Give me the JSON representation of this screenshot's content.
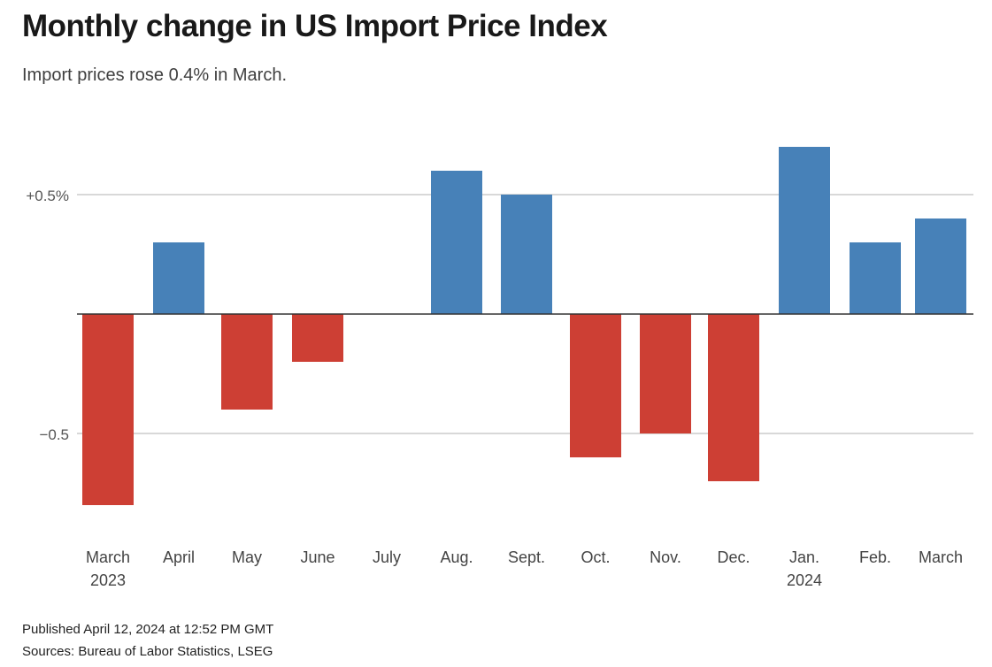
{
  "header": {
    "title": "Monthly change in US Import Price Index",
    "subtitle": "Import prices rose 0.4% in March."
  },
  "footer": {
    "published": "Published April 12, 2024 at 12:52 PM GMT",
    "sources": "Sources: Bureau of Labor Statistics, LSEG"
  },
  "chart_data": {
    "type": "bar",
    "title": "Monthly change in US Import Price Index",
    "subtitle": "Import prices rose 0.4% in March.",
    "xlabel": "",
    "ylabel": "",
    "categories": [
      "March 2023",
      "April",
      "May",
      "June",
      "July",
      "Aug.",
      "Sept.",
      "Oct.",
      "Nov.",
      "Dec.",
      "Jan. 2024",
      "Feb.",
      "March"
    ],
    "category_labels": [
      [
        "March",
        "2023"
      ],
      [
        "April"
      ],
      [
        "May"
      ],
      [
        "June"
      ],
      [
        "July"
      ],
      [
        "Aug."
      ],
      [
        "Sept."
      ],
      [
        "Oct."
      ],
      [
        "Nov."
      ],
      [
        "Dec."
      ],
      [
        "Jan.",
        "2024"
      ],
      [
        "Feb."
      ],
      [
        "March"
      ]
    ],
    "values": [
      -0.8,
      0.3,
      -0.4,
      -0.2,
      0.0,
      0.6,
      0.5,
      -0.6,
      -0.5,
      -0.7,
      0.7,
      0.3,
      0.4
    ],
    "unit": "%",
    "ylim": [
      -0.9,
      0.75
    ],
    "yticks": [
      {
        "value": 0.5,
        "label": "+0.5%"
      },
      {
        "value": -0.5,
        "label": "−0.5"
      }
    ],
    "grid": true,
    "colors": {
      "positive": "#4781b8",
      "negative": "#cd3f34",
      "grid": "#cccccc",
      "zero_line": "#333333"
    },
    "legend": "none"
  }
}
